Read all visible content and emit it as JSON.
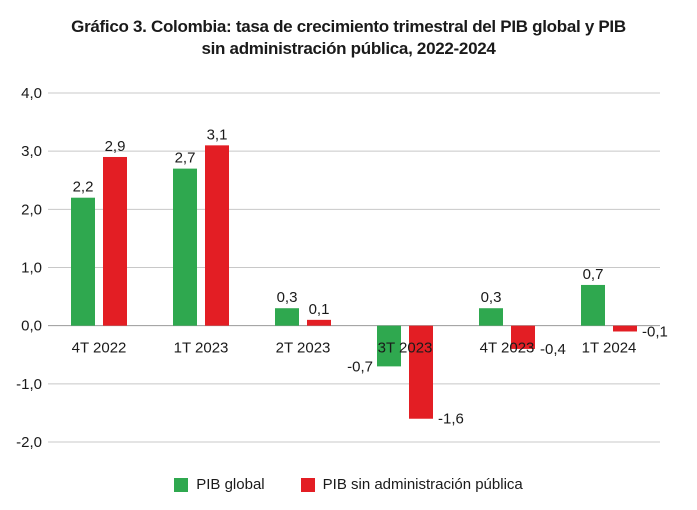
{
  "chart_data": {
    "type": "bar",
    "title_line1": "Gráfico 3. Colombia: tasa de crecimiento trimestral del PIB global y PIB",
    "title_line2": "sin administración pública, 2022-2024",
    "xlabel": "",
    "ylabel": "",
    "ylim": [
      -2.0,
      4.0
    ],
    "yticks": [
      4.0,
      3.0,
      2.0,
      1.0,
      0.0,
      -1.0,
      -2.0
    ],
    "ytick_labels": [
      "4,0",
      "3,0",
      "2,0",
      "1,0",
      "0,0",
      "-1,0",
      "-2,0"
    ],
    "grid": true,
    "legend_position": "bottom",
    "categories": [
      "4T 2022",
      "1T 2023",
      "2T 2023",
      "3T 2023",
      "4T 2023",
      "1T 2024"
    ],
    "series": [
      {
        "name": "PIB global",
        "color": "#2fa84f",
        "values": [
          2.2,
          2.7,
          0.3,
          -0.7,
          0.3,
          0.7
        ],
        "labels": [
          "2,2",
          "2,7",
          "0,3",
          "-0,7",
          "0,3",
          "0,7"
        ]
      },
      {
        "name": "PIB sin administración pública",
        "color": "#e31e24",
        "values": [
          2.9,
          3.1,
          0.1,
          -1.6,
          -0.4,
          -0.1
        ],
        "labels": [
          "2,9",
          "3,1",
          "0,1",
          "-1,6",
          "-0,4",
          "-0,1"
        ]
      }
    ]
  }
}
